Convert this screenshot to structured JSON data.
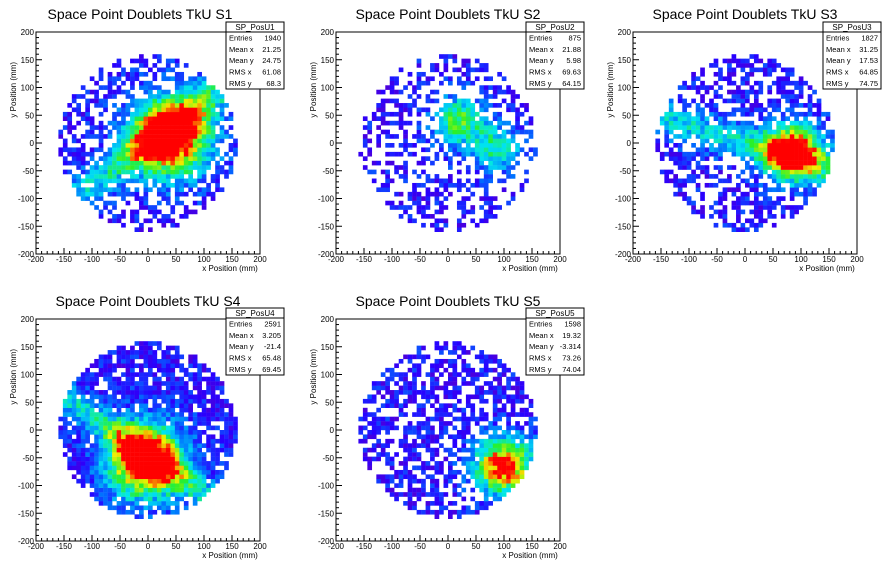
{
  "chart_data": [
    {
      "type": "heatmap",
      "title": "Space Point Doublets TkU S1",
      "xlabel": "x Position (mm)",
      "ylabel": "y Position (mm)",
      "xlim": [
        -200,
        200
      ],
      "ylim": [
        -200,
        200
      ],
      "xticks": [
        -200,
        -150,
        -100,
        -50,
        0,
        50,
        100,
        150,
        200
      ],
      "yticks": [
        -200,
        -150,
        -100,
        -50,
        0,
        50,
        100,
        150,
        200
      ],
      "stats": {
        "name": "SP_PosU1",
        "rows": [
          [
            "Entries",
            "1940"
          ],
          [
            "Mean x",
            "21.25"
          ],
          [
            "Mean y",
            "24.75"
          ],
          [
            "RMS x",
            "61.08"
          ],
          [
            "RMS y",
            "68.3"
          ]
        ]
      }
    },
    {
      "type": "heatmap",
      "title": "Space Point Doublets TkU S2",
      "xlabel": "x Position (mm)",
      "ylabel": "y Position (mm)",
      "xlim": [
        -200,
        200
      ],
      "ylim": [
        -200,
        200
      ],
      "xticks": [
        -200,
        -150,
        -100,
        -50,
        0,
        50,
        100,
        150,
        200
      ],
      "yticks": [
        -200,
        -150,
        -100,
        -50,
        0,
        50,
        100,
        150,
        200
      ],
      "stats": {
        "name": "SP_PosU2",
        "rows": [
          [
            "Entries",
            "875"
          ],
          [
            "Mean x",
            "21.88"
          ],
          [
            "Mean y",
            "5.98"
          ],
          [
            "RMS x",
            "69.63"
          ],
          [
            "RMS y",
            "64.15"
          ]
        ]
      }
    },
    {
      "type": "heatmap",
      "title": "Space Point Doublets TkU S3",
      "xlabel": "x Position (mm)",
      "ylabel": "y Position (mm)",
      "xlim": [
        -200,
        200
      ],
      "ylim": [
        -200,
        200
      ],
      "xticks": [
        -200,
        -150,
        -100,
        -50,
        0,
        50,
        100,
        150,
        200
      ],
      "yticks": [
        -200,
        -150,
        -100,
        -50,
        0,
        50,
        100,
        150,
        200
      ],
      "stats": {
        "name": "SP_PosU3",
        "rows": [
          [
            "Entries",
            "1827"
          ],
          [
            "Mean x",
            "31.25"
          ],
          [
            "Mean y",
            "17.53"
          ],
          [
            "RMS x",
            "64.85"
          ],
          [
            "RMS y",
            "74.75"
          ]
        ]
      }
    },
    {
      "type": "heatmap",
      "title": "Space Point Doublets TkU S4",
      "xlabel": "x Position (mm)",
      "ylabel": "y Position (mm)",
      "xlim": [
        -200,
        200
      ],
      "ylim": [
        -200,
        200
      ],
      "xticks": [
        -200,
        -150,
        -100,
        -50,
        0,
        50,
        100,
        150,
        200
      ],
      "yticks": [
        -200,
        -150,
        -100,
        -50,
        0,
        50,
        100,
        150,
        200
      ],
      "stats": {
        "name": "SP_PosU4",
        "rows": [
          [
            "Entries",
            "2591"
          ],
          [
            "Mean x",
            "3.205"
          ],
          [
            "Mean y",
            "-21.4"
          ],
          [
            "RMS x",
            "65.48"
          ],
          [
            "RMS y",
            "69.45"
          ]
        ]
      }
    },
    {
      "type": "heatmap",
      "title": "Space Point Doublets TkU S5",
      "xlabel": "x Position (mm)",
      "ylabel": "y Position (mm)",
      "xlim": [
        -200,
        200
      ],
      "ylim": [
        -200,
        200
      ],
      "xticks": [
        -200,
        -150,
        -100,
        -50,
        0,
        50,
        100,
        150,
        200
      ],
      "yticks": [
        -200,
        -150,
        -100,
        -50,
        0,
        50,
        100,
        150,
        200
      ],
      "stats": {
        "name": "SP_PosU5",
        "rows": [
          [
            "Entries",
            "1598"
          ],
          [
            "Mean x",
            "19.32"
          ],
          [
            "Mean y",
            "-3.314"
          ],
          [
            "RMS x",
            "73.26"
          ],
          [
            "RMS y",
            "74.04"
          ]
        ]
      }
    }
  ]
}
